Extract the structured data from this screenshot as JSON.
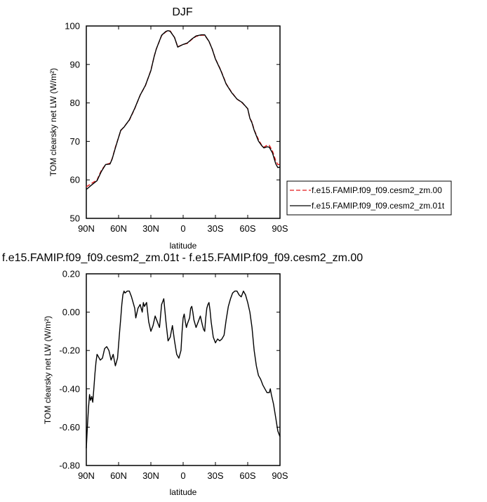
{
  "chart_data": [
    {
      "type": "line",
      "title": "DJF",
      "xlabel": "latitude",
      "ylabel": "TOM clearsky net LW (W/m²)",
      "xlim": [
        -90,
        90
      ],
      "ylim": [
        50,
        100
      ],
      "x_ticks": [
        -90,
        -60,
        -30,
        0,
        30,
        60,
        90
      ],
      "x_tick_labels": [
        "90N",
        "60N",
        "30N",
        "0",
        "30S",
        "60S",
        "90S"
      ],
      "y_ticks": [
        50,
        60,
        70,
        80,
        90,
        100
      ],
      "y_tick_labels": [
        "50",
        "60",
        "70",
        "80",
        "90",
        "100"
      ],
      "legend_position": "right",
      "series": [
        {
          "name": "f.e15.FAMIP.f09_f09.cesm2_zm.00",
          "color": "#e41a1c",
          "dash": "dashed",
          "x": [
            -90,
            -85,
            -80,
            -76,
            -72,
            -68,
            -66,
            -63,
            -58,
            -55,
            -50,
            -45,
            -40,
            -35,
            -30,
            -27,
            -25,
            -20,
            -16,
            -14,
            -12,
            -8,
            -5,
            0,
            4,
            8,
            12,
            17,
            20,
            24,
            27,
            30,
            35,
            40,
            45,
            50,
            55,
            60,
            62,
            64,
            66,
            70,
            73,
            75,
            78,
            80,
            83,
            86,
            88,
            90
          ],
          "values": [
            58.2,
            59.1,
            60.0,
            62.5,
            64.0,
            64.3,
            65.5,
            68.5,
            72.8,
            73.8,
            75.5,
            78.5,
            82.0,
            84.5,
            88.5,
            92.0,
            94.0,
            97.5,
            98.5,
            98.8,
            98.7,
            97.0,
            94.6,
            95.2,
            95.5,
            96.5,
            97.3,
            97.6,
            97.6,
            96.0,
            94.0,
            91.5,
            88.5,
            85.0,
            82.8,
            81.0,
            80.0,
            78.5,
            76.0,
            75.0,
            73.0,
            70.5,
            69.0,
            68.5,
            69.0,
            69.0,
            67.5,
            65.0,
            64.0,
            64.0
          ]
        },
        {
          "name": "f.e15.FAMIP.f09_f09.cesm2_zm.01t",
          "color": "#000000",
          "dash": "solid",
          "x": [
            -90,
            -85,
            -80,
            -76,
            -72,
            -68,
            -66,
            -63,
            -58,
            -55,
            -50,
            -45,
            -40,
            -35,
            -30,
            -27,
            -25,
            -20,
            -16,
            -14,
            -12,
            -8,
            -5,
            0,
            4,
            8,
            12,
            17,
            20,
            24,
            27,
            30,
            35,
            40,
            45,
            50,
            55,
            60,
            62,
            64,
            66,
            70,
            73,
            75,
            78,
            80,
            83,
            86,
            88,
            90
          ],
          "values": [
            57.5,
            58.7,
            59.8,
            62.2,
            64.0,
            64.1,
            65.4,
            68.3,
            72.9,
            73.7,
            75.6,
            78.6,
            82.0,
            84.6,
            88.4,
            92.0,
            94.0,
            97.6,
            98.6,
            98.8,
            98.6,
            97.0,
            94.5,
            95.2,
            95.6,
            96.6,
            97.4,
            97.7,
            97.7,
            96.0,
            94.0,
            91.4,
            88.4,
            84.9,
            82.7,
            81.0,
            80.1,
            78.5,
            76.0,
            74.8,
            72.9,
            70.1,
            68.9,
            68.3,
            68.6,
            68.5,
            67.0,
            64.2,
            63.2,
            63.3
          ]
        }
      ]
    },
    {
      "type": "line",
      "title": "f.e15.FAMIP.f09_f09.cesm2_zm.01t - f.e15.FAMIP.f09_f09.cesm2_zm.00",
      "xlabel": "latitude",
      "ylabel": "TOM clearsky net LW (W/m²)",
      "xlim": [
        -90,
        90
      ],
      "ylim": [
        -0.8,
        0.2
      ],
      "x_ticks": [
        -90,
        -60,
        -30,
        0,
        30,
        60,
        90
      ],
      "x_tick_labels": [
        "90N",
        "60N",
        "30N",
        "0",
        "30S",
        "60S",
        "90S"
      ],
      "y_ticks": [
        -0.8,
        -0.6,
        -0.4,
        -0.2,
        0.0,
        0.2
      ],
      "y_tick_labels": [
        "-0.80",
        "-0.60",
        "-0.40",
        "-0.20",
        "0.00",
        "0.20"
      ],
      "series": [
        {
          "color": "#000000",
          "dash": "solid",
          "x": [
            -90,
            -89,
            -88,
            -87,
            -86,
            -85,
            -84,
            -83,
            -82,
            -81,
            -80,
            -79,
            -77,
            -75,
            -73,
            -71,
            -69,
            -67,
            -65,
            -63,
            -61,
            -59,
            -58,
            -57,
            -56,
            -55,
            -54,
            -52,
            -50,
            -48,
            -46,
            -45,
            -44,
            -42,
            -40,
            -38,
            -37,
            -36,
            -34,
            -32,
            -30,
            -28,
            -26,
            -24,
            -22,
            -20,
            -18,
            -16,
            -15,
            -14,
            -12,
            -10,
            -8,
            -6,
            -4,
            -2,
            -1,
            0,
            1,
            2,
            3,
            4,
            6,
            7,
            8,
            9,
            10,
            12,
            14,
            16,
            18,
            19,
            20,
            21,
            22,
            23,
            24,
            25,
            26,
            28,
            30,
            32,
            34,
            36,
            38,
            40,
            42,
            44,
            46,
            48,
            50,
            52,
            54,
            56,
            58,
            60,
            62,
            64,
            66,
            68,
            70,
            72,
            74,
            76,
            78,
            80,
            81,
            82,
            84,
            86,
            88,
            90
          ],
          "values": [
            -0.71,
            -0.6,
            -0.5,
            -0.43,
            -0.46,
            -0.44,
            -0.47,
            -0.4,
            -0.32,
            -0.26,
            -0.22,
            -0.23,
            -0.25,
            -0.24,
            -0.19,
            -0.18,
            -0.2,
            -0.25,
            -0.22,
            -0.28,
            -0.24,
            -0.1,
            -0.03,
            0.04,
            0.09,
            0.11,
            0.1,
            0.11,
            0.11,
            0.08,
            0.04,
            0.02,
            -0.03,
            0.02,
            0.04,
            0.0,
            0.05,
            0.03,
            0.05,
            -0.05,
            -0.1,
            -0.07,
            -0.02,
            -0.05,
            -0.08,
            0.04,
            0.07,
            -0.05,
            -0.1,
            -0.15,
            -0.13,
            -0.07,
            -0.15,
            -0.22,
            -0.24,
            -0.2,
            -0.1,
            -0.03,
            -0.01,
            -0.05,
            -0.08,
            -0.06,
            -0.03,
            0.02,
            0.03,
            0.0,
            -0.04,
            -0.08,
            -0.05,
            -0.02,
            -0.07,
            -0.09,
            -0.1,
            -0.03,
            0.02,
            0.04,
            0.05,
            0.01,
            -0.05,
            -0.13,
            -0.16,
            -0.14,
            -0.15,
            -0.14,
            -0.12,
            -0.04,
            0.03,
            0.07,
            0.1,
            0.11,
            0.11,
            0.09,
            0.08,
            0.11,
            0.09,
            0.05,
            0.0,
            -0.08,
            -0.2,
            -0.28,
            -0.33,
            -0.35,
            -0.38,
            -0.4,
            -0.42,
            -0.42,
            -0.4,
            -0.43,
            -0.48,
            -0.55,
            -0.62,
            -0.65
          ]
        }
      ]
    }
  ]
}
